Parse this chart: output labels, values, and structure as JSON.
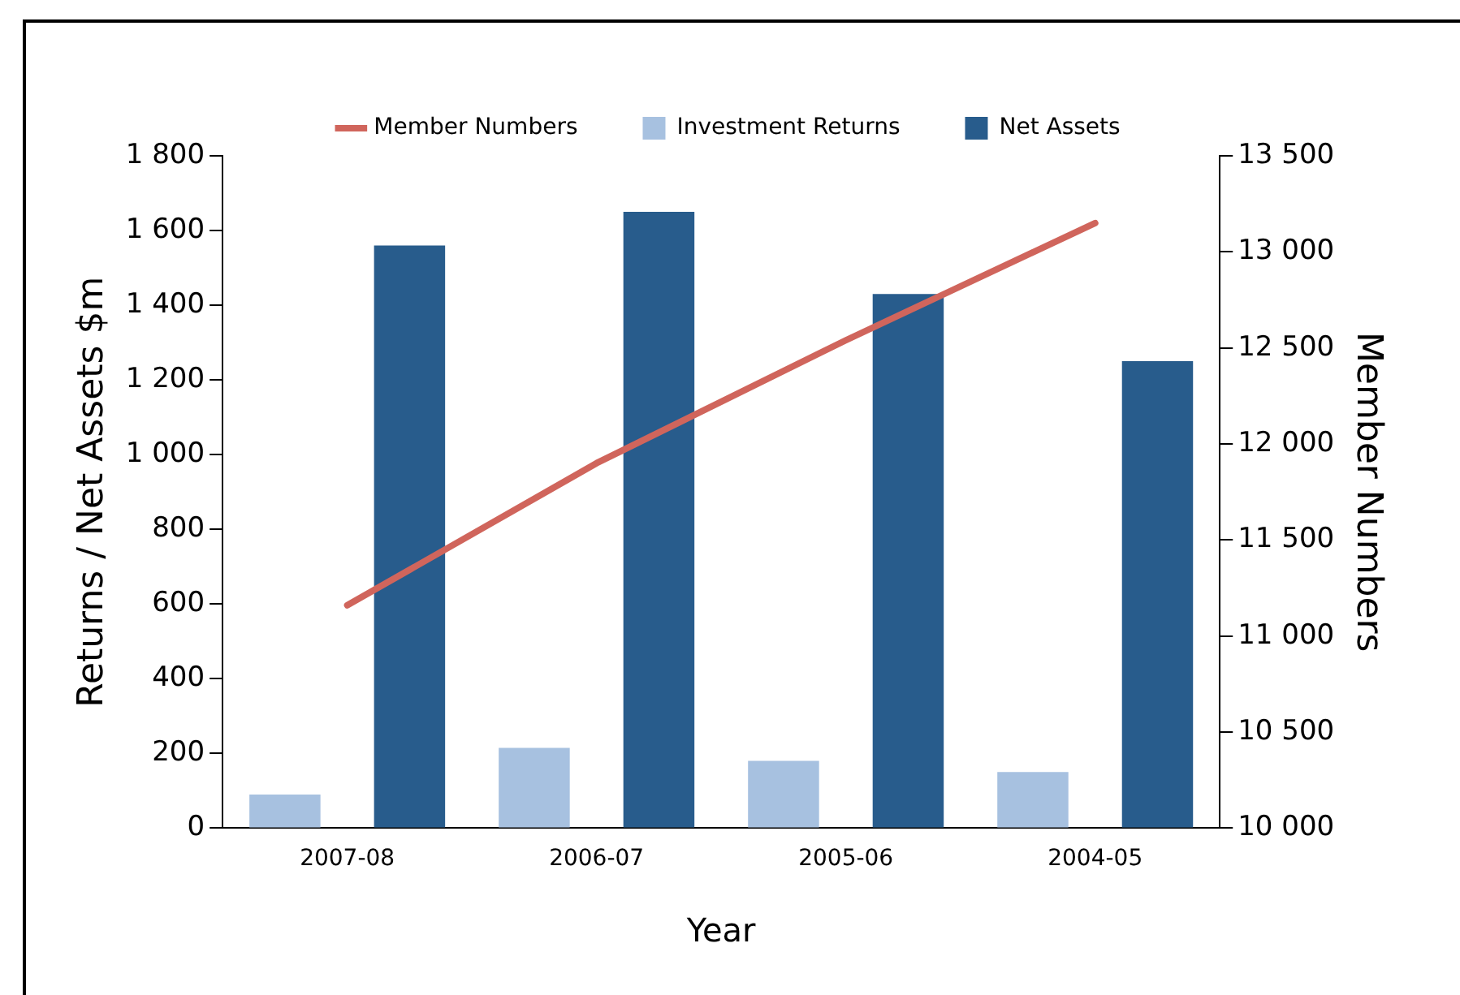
{
  "chart_data": {
    "type": "bar",
    "xlabel": "Year",
    "ylabel": "Returns / Net Assets $m",
    "y2label": "Member Numbers",
    "categories": [
      "2007-08",
      "2006-07",
      "2005-06",
      "2004-05"
    ],
    "series": [
      {
        "name": "Investment Returns",
        "color": "#a7c1e0",
        "values": [
          90,
          215,
          180,
          150
        ]
      },
      {
        "name": "Net Assets",
        "color": "#285c8c",
        "values": [
          1560,
          1650,
          1430,
          1250
        ]
      },
      {
        "name": "Member Numbers",
        "type": "line",
        "axis": "y2",
        "color": "#d0655c",
        "values": [
          11160,
          11900,
          12540,
          13150
        ]
      }
    ],
    "ylim": [
      0,
      1800
    ],
    "yticks": [
      0,
      200,
      400,
      600,
      800,
      {
        "value": 1000,
        "label": "1 000"
      },
      {
        "value": 1200,
        "label": "1 200"
      },
      {
        "value": 1400,
        "label": "1 400"
      },
      {
        "value": 1600,
        "label": "1 600"
      },
      {
        "value": 1800,
        "label": "1 800"
      }
    ],
    "y2lim": [
      10000,
      13500
    ],
    "y2ticks": [
      {
        "value": 10000,
        "label": "10 000"
      },
      {
        "value": 10500,
        "label": "10 500"
      },
      {
        "value": 11000,
        "label": "11 000"
      },
      {
        "value": 11500,
        "label": "11 500"
      },
      {
        "value": 12000,
        "label": "12 000"
      },
      {
        "value": 12500,
        "label": "12 500"
      },
      {
        "value": 13000,
        "label": "13 000"
      },
      {
        "value": 13500,
        "label": "13 500"
      }
    ],
    "grid": false,
    "legend": "top",
    "marker": "none",
    "line_style": "solid"
  }
}
